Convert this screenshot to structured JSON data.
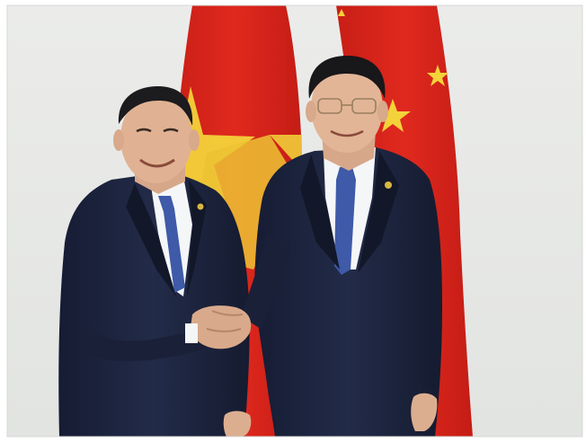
{
  "photo": {
    "subject": "two-men-shaking-hands",
    "background_color": "#e9ebe9",
    "flag_colors": {
      "red": "#d8261c",
      "star_yellow": "#f3d23a"
    },
    "suit_color": "#1d2540",
    "tie_color": "#3e5aa8"
  }
}
